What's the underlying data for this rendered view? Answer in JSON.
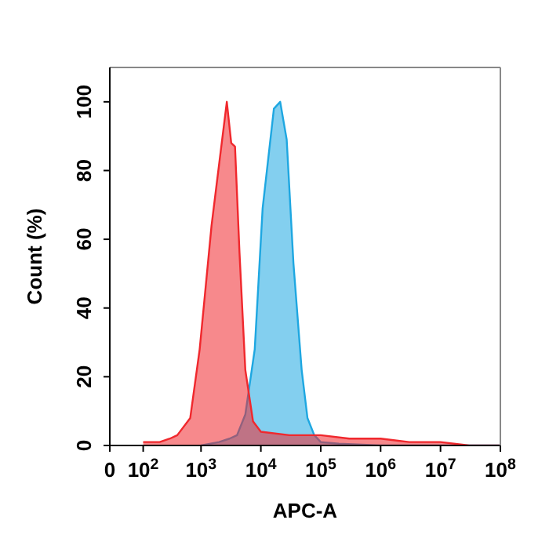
{
  "chart_data": {
    "type": "area",
    "xlabel": "APC-A",
    "ylabel": "Count  (%)",
    "log": "x",
    "xlim": [
      0,
      100000000
    ],
    "xticks": [
      0,
      {
        "value": 100,
        "label": "10$^{2}$"
      },
      {
        "value": 1000,
        "label": "10$^{3}$"
      },
      {
        "value": 10000,
        "label": "10$^{4}$"
      },
      {
        "value": 100000,
        "label": "10$^{5}$"
      },
      {
        "value": 1000000,
        "label": "10$^{6}$"
      },
      {
        "value": 10000000,
        "label": "10$^{7}$"
      },
      {
        "value": 100000000,
        "label": "10$^{8}$"
      }
    ],
    "ylim": [
      0,
      110
    ],
    "yticks": [
      0,
      20,
      40,
      60,
      80,
      100
    ],
    "series": [
      {
        "color": "#1ea7e1",
        "x": [
          1000,
          2000,
          3000,
          4000,
          5500,
          7900,
          10700,
          16500,
          21000,
          27000,
          35000,
          48000,
          60000,
          78000,
          100000,
          200000,
          1000000,
          100000000
        ],
        "values": [
          0,
          1,
          2,
          3,
          9,
          28,
          69,
          98,
          100,
          89,
          53,
          22,
          8,
          3,
          1,
          0.5,
          0,
          0
        ]
      },
      {
        "color": "#f0282d",
        "x": [
          100,
          200,
          300,
          400,
          660,
          950,
          1500,
          2700,
          3200,
          3700,
          4400,
          5500,
          7400,
          10000,
          30000,
          100000,
          300000,
          1000000,
          3000000,
          10000000,
          30000000,
          100000000
        ],
        "values": [
          1,
          1,
          2,
          3,
          8,
          28,
          64,
          100,
          88,
          87,
          56,
          22,
          7,
          4,
          3,
          3,
          2,
          2,
          1,
          1,
          0,
          0
        ]
      }
    ]
  }
}
